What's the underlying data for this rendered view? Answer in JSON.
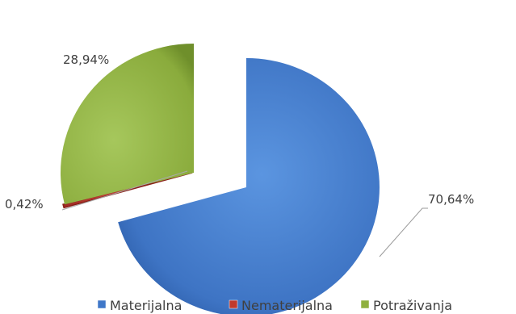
{
  "chart_data": {
    "type": "pie",
    "exploded": true,
    "style": "3d-gradient",
    "categories": [
      "Materijalna",
      "Nematerijalna",
      "Potraživanja"
    ],
    "values": [
      70.64,
      0.42,
      28.94
    ],
    "data_labels": [
      "70,64%",
      "0,42%",
      "28,94%"
    ],
    "colors": [
      "#3f77c8",
      "#c0392b",
      "#8fb03e"
    ],
    "legend_position": "bottom",
    "legend_labels": [
      "Materijalna",
      "Nematerijalna",
      "Potraživanja"
    ]
  }
}
